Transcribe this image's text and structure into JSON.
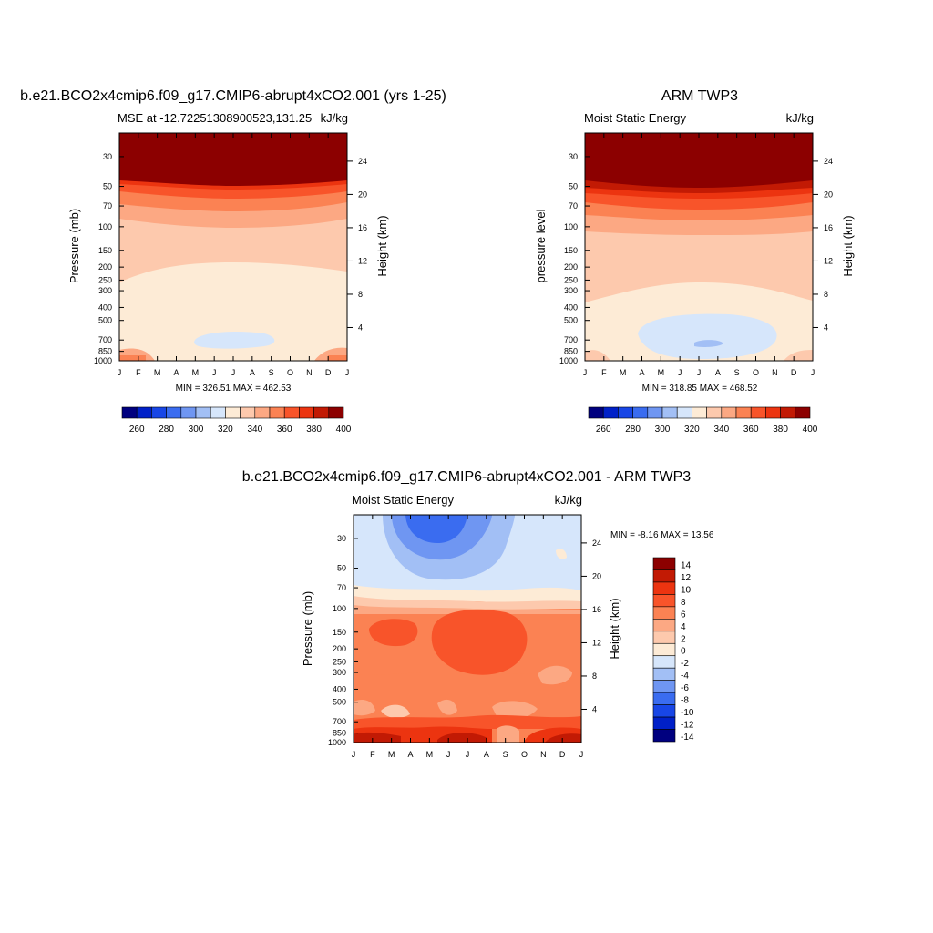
{
  "figure": {
    "panel1": {
      "title": "b.e21.BCO2x4cmip6.f09_g17.CMIP6-abrupt4xCO2.001 (yrs 1-25)",
      "left_label": "MSE at -12.72251308900523,131.25",
      "right_label": "kJ/kg",
      "ylabel_left": "Pressure (mb)",
      "ylabel_right": "Height (km)",
      "minmax": "MIN = 326.51 MAX = 462.53"
    },
    "panel2": {
      "title": "ARM TWP3",
      "left_label": "Moist Static Energy",
      "right_label": "kJ/kg",
      "ylabel_left": "pressure level",
      "ylabel_right": "Height (km)",
      "minmax": "MIN = 318.85 MAX = 468.52"
    },
    "panel3": {
      "title": "b.e21.BCO2x4cmip6.f09_g17.CMIP6-abrupt4xCO2.001 - ARM TWP3",
      "left_label": "Moist Static Energy",
      "right_label": "kJ/kg",
      "ylabel_left": "Pressure (mb)",
      "ylabel_right": "Height (km)",
      "minmax": "MIN =  -8.16 MAX =  13.56"
    }
  },
  "chart_data": [
    {
      "type": "heatmap",
      "title": "b.e21.BCO2x4cmip6.f09_g17.CMIP6-abrupt4xCO2.001 (yrs 1-25)",
      "subtitle": "MSE at -12.72251308900523,131.25",
      "units": "kJ/kg",
      "xlabel": "",
      "ylabel": "Pressure (mb)",
      "ylabel_right": "Height (km)",
      "x_ticks": [
        "J",
        "F",
        "M",
        "A",
        "M",
        "J",
        "J",
        "A",
        "S",
        "O",
        "N",
        "D",
        "J"
      ],
      "y_ticks": [
        30,
        50,
        70,
        100,
        150,
        200,
        250,
        300,
        400,
        500,
        700,
        850,
        1000
      ],
      "y_right_ticks": [
        4,
        8,
        12,
        16,
        20,
        24
      ],
      "ylim": [
        1000,
        20
      ],
      "min": 326.51,
      "max": 462.53,
      "colorbar_levels": [
        260,
        280,
        300,
        320,
        340,
        360,
        380,
        400
      ],
      "colorbar_orientation": "horizontal"
    },
    {
      "type": "heatmap",
      "title": "ARM TWP3",
      "subtitle": "Moist Static Energy",
      "units": "kJ/kg",
      "xlabel": "",
      "ylabel": "pressure level",
      "ylabel_right": "Height (km)",
      "x_ticks": [
        "J",
        "F",
        "M",
        "A",
        "M",
        "J",
        "J",
        "A",
        "S",
        "O",
        "N",
        "D",
        "J"
      ],
      "y_ticks": [
        30,
        50,
        70,
        100,
        150,
        200,
        250,
        300,
        400,
        500,
        700,
        850,
        1000
      ],
      "y_right_ticks": [
        4,
        8,
        12,
        16,
        20,
        24
      ],
      "ylim": [
        1000,
        20
      ],
      "min": 318.85,
      "max": 468.52,
      "colorbar_levels": [
        260,
        280,
        300,
        320,
        340,
        360,
        380,
        400
      ],
      "colorbar_orientation": "horizontal"
    },
    {
      "type": "heatmap",
      "title": "b.e21.BCO2x4cmip6.f09_g17.CMIP6-abrupt4xCO2.001 - ARM TWP3",
      "subtitle": "Moist Static Energy",
      "units": "kJ/kg",
      "xlabel": "",
      "ylabel": "Pressure (mb)",
      "ylabel_right": "Height (km)",
      "x_ticks": [
        "J",
        "F",
        "M",
        "A",
        "M",
        "J",
        "J",
        "A",
        "S",
        "O",
        "N",
        "D",
        "J"
      ],
      "y_ticks": [
        30,
        50,
        70,
        100,
        150,
        200,
        250,
        300,
        400,
        500,
        700,
        850,
        1000
      ],
      "y_right_ticks": [
        4,
        8,
        12,
        16,
        20,
        24
      ],
      "ylim": [
        1000,
        20
      ],
      "min": -8.16,
      "max": 13.56,
      "colorbar_levels": [
        14,
        12,
        10,
        8,
        6,
        4,
        2,
        0,
        -2,
        -4,
        -6,
        -8,
        -10,
        -12,
        -14
      ],
      "colorbar_orientation": "vertical"
    }
  ],
  "colors": {
    "palette": [
      "#00007f",
      "#0020c8",
      "#1846e6",
      "#3a6cf0",
      "#6f96f2",
      "#a2bff5",
      "#d6e6fb",
      "#fdebd6",
      "#fdc9ad",
      "#fca883",
      "#fb8253",
      "#f8542a",
      "#ec3410",
      "#c21a04",
      "#8c0000"
    ]
  }
}
